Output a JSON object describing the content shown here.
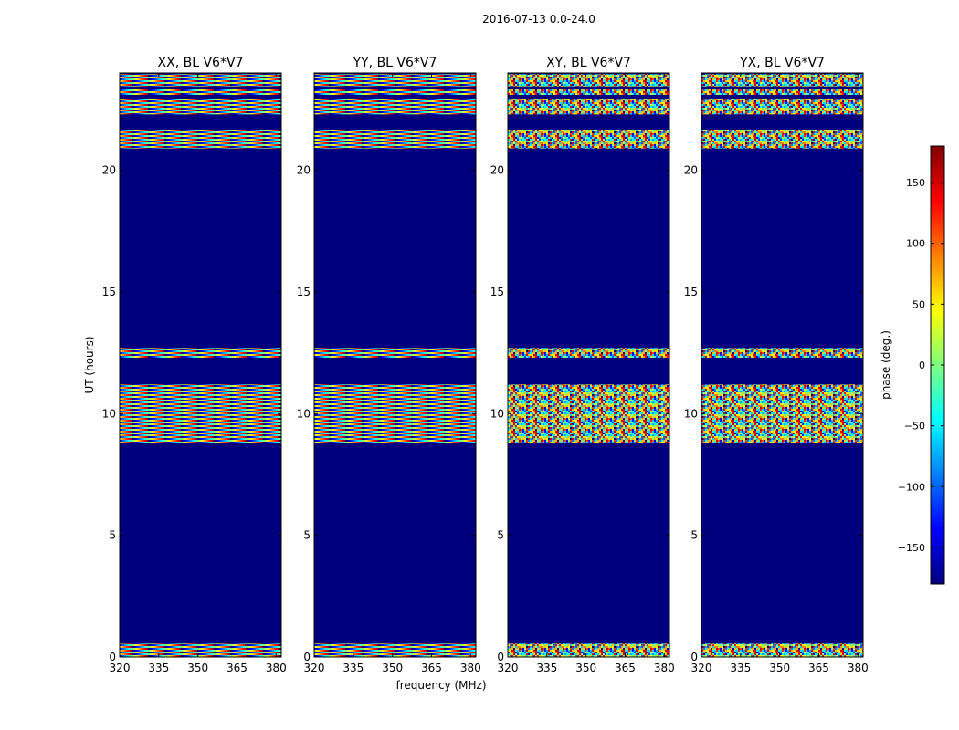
{
  "suptitle": "2016-07-13 0.0-24.0",
  "chart_data": {
    "type": "heatmap",
    "xlabel": "frequency (MHz)",
    "ylabel": "UT (hours)",
    "xlim": [
      320,
      382
    ],
    "ylim": [
      0,
      24
    ],
    "x_ticks": [
      "320",
      "335",
      "350",
      "365",
      "380"
    ],
    "y_ticks": [
      "0",
      "5",
      "10",
      "15",
      "20"
    ],
    "colorbar": {
      "label": "phase (deg.)",
      "range": [
        -180,
        180
      ],
      "ticks": [
        "150",
        "100",
        "50",
        "0",
        "−50",
        "−100",
        "−150"
      ],
      "tick_values": [
        150,
        100,
        50,
        0,
        -50,
        -100,
        -150
      ],
      "colormap": "jet",
      "colors": [
        "#00007f",
        "#0000ff",
        "#007fff",
        "#00ffff",
        "#7fff7f",
        "#ffff00",
        "#ff7f00",
        "#ff0000",
        "#7f0000"
      ],
      "background_phase": -180
    },
    "panels": [
      {
        "title": "XX, BL V6*V7",
        "pattern": "fringe"
      },
      {
        "title": "YY, BL V6*V7",
        "pattern": "fringe"
      },
      {
        "title": "XY, BL V6*V7",
        "pattern": "noise"
      },
      {
        "title": "YX, BL V6*V7",
        "pattern": "noise"
      }
    ],
    "data_bands_ut_hours": [
      [
        0.0,
        0.55
      ],
      [
        8.8,
        11.2
      ],
      [
        12.3,
        12.7
      ],
      [
        20.9,
        21.65
      ],
      [
        22.3,
        22.95
      ],
      [
        23.1,
        23.35
      ],
      [
        23.45,
        23.95
      ]
    ]
  }
}
